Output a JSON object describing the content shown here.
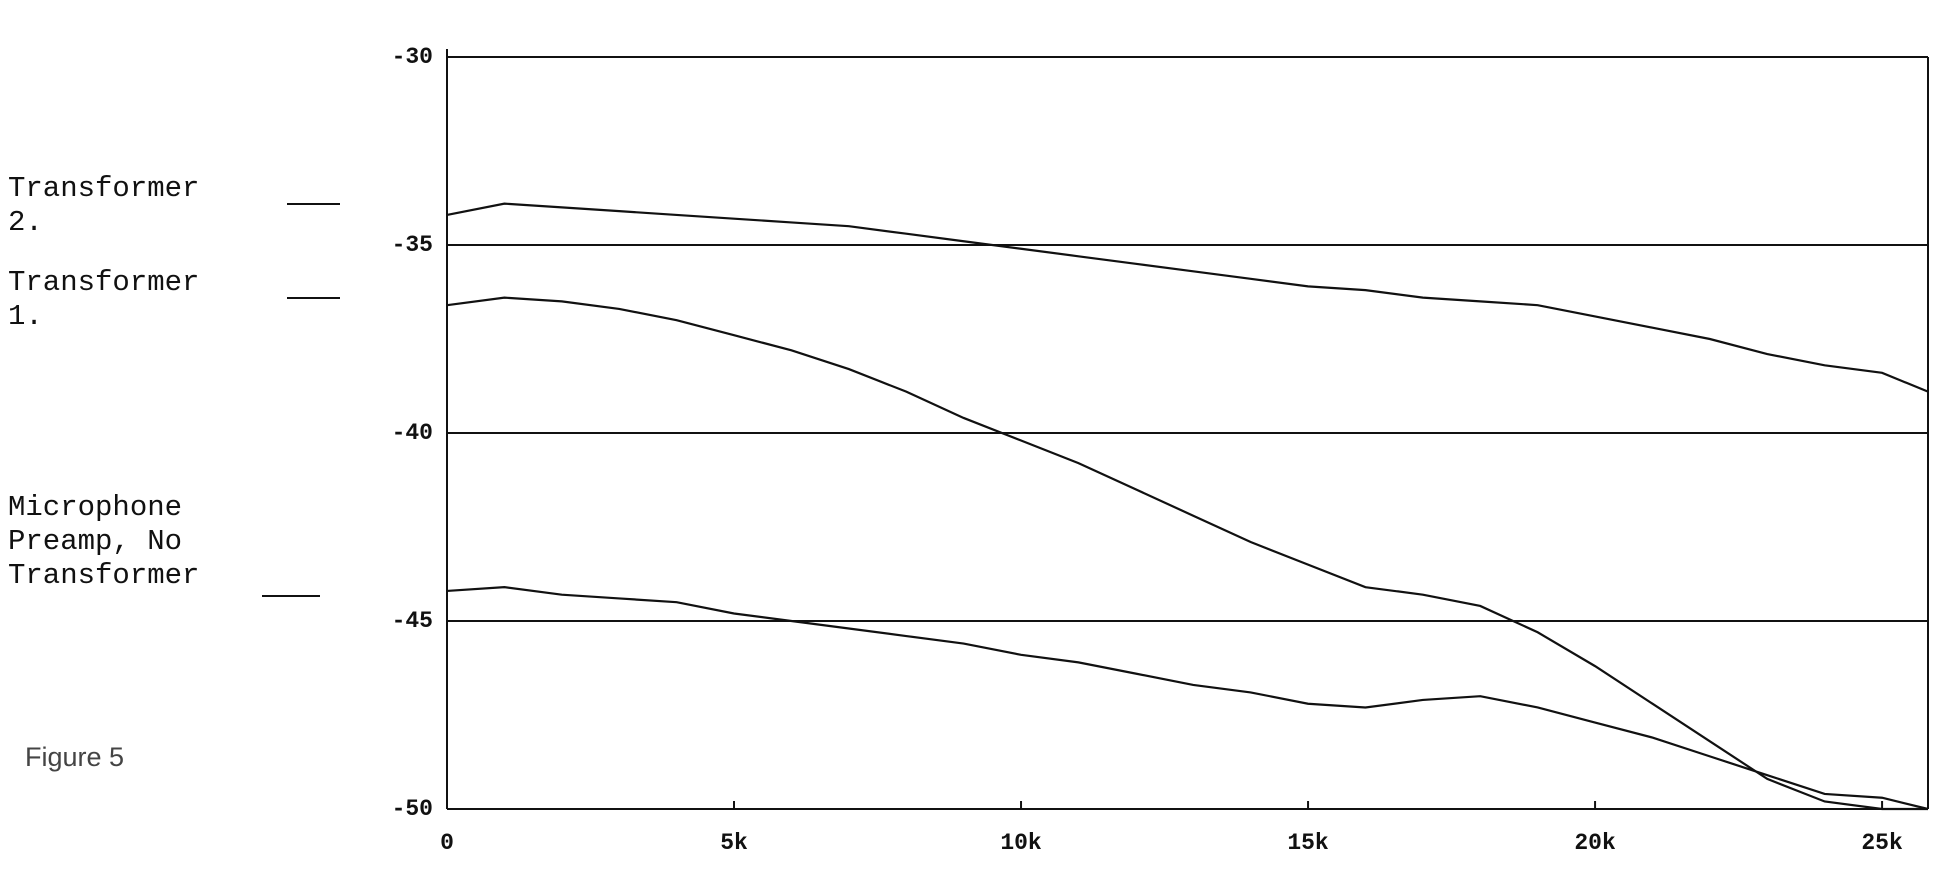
{
  "chart_data": {
    "type": "line",
    "caption": "Figure 5",
    "x": [
      0,
      1000,
      2000,
      3000,
      4000,
      5000,
      6000,
      7000,
      8000,
      9000,
      10000,
      11000,
      12000,
      13000,
      14000,
      15000,
      16000,
      17000,
      18000,
      19000,
      20000,
      21000,
      22000,
      23000,
      24000,
      25000,
      25800
    ],
    "series": [
      {
        "name": "Transformer 2.",
        "color": "#111111",
        "values": [
          -34.2,
          -33.9,
          -34.0,
          -34.1,
          -34.2,
          -34.3,
          -34.4,
          -34.5,
          -34.7,
          -34.9,
          -35.1,
          -35.3,
          -35.5,
          -35.7,
          -35.9,
          -36.1,
          -36.2,
          -36.4,
          -36.5,
          -36.6,
          -36.9,
          -37.2,
          -37.5,
          -37.9,
          -38.2,
          -38.4,
          -38.9
        ]
      },
      {
        "name": "Transformer 1.",
        "color": "#111111",
        "values": [
          -36.6,
          -36.4,
          -36.5,
          -36.7,
          -37.0,
          -37.4,
          -37.8,
          -38.3,
          -38.9,
          -39.6,
          -40.2,
          -40.8,
          -41.5,
          -42.2,
          -42.9,
          -43.5,
          -44.1,
          -44.3,
          -44.6,
          -45.3,
          -46.2,
          -47.2,
          -48.2,
          -49.2,
          -49.8,
          -50.0,
          -50.0
        ]
      },
      {
        "name": "Microphone Preamp, No Transformer",
        "color": "#111111",
        "values": [
          -44.2,
          -44.1,
          -44.3,
          -44.4,
          -44.5,
          -44.8,
          -45.0,
          -45.2,
          -45.4,
          -45.6,
          -45.9,
          -46.1,
          -46.4,
          -46.7,
          -46.9,
          -47.2,
          -47.3,
          -47.1,
          -47.0,
          -47.3,
          -47.7,
          -48.1,
          -48.6,
          -49.1,
          -49.6,
          -49.7,
          -50.0
        ]
      }
    ],
    "xlim": [
      0,
      25800
    ],
    "ylim": [
      -50,
      -30
    ],
    "xticks": [
      0,
      {
        "value": 5000,
        "label": "5k"
      },
      {
        "value": 10000,
        "label": "10k"
      },
      {
        "value": 15000,
        "label": "15k"
      },
      {
        "value": 20000,
        "label": "20k"
      },
      {
        "value": 25000,
        "label": "25k"
      }
    ],
    "yticks": [
      -30,
      -35,
      -40,
      -45,
      -50
    ],
    "grid": true
  }
}
